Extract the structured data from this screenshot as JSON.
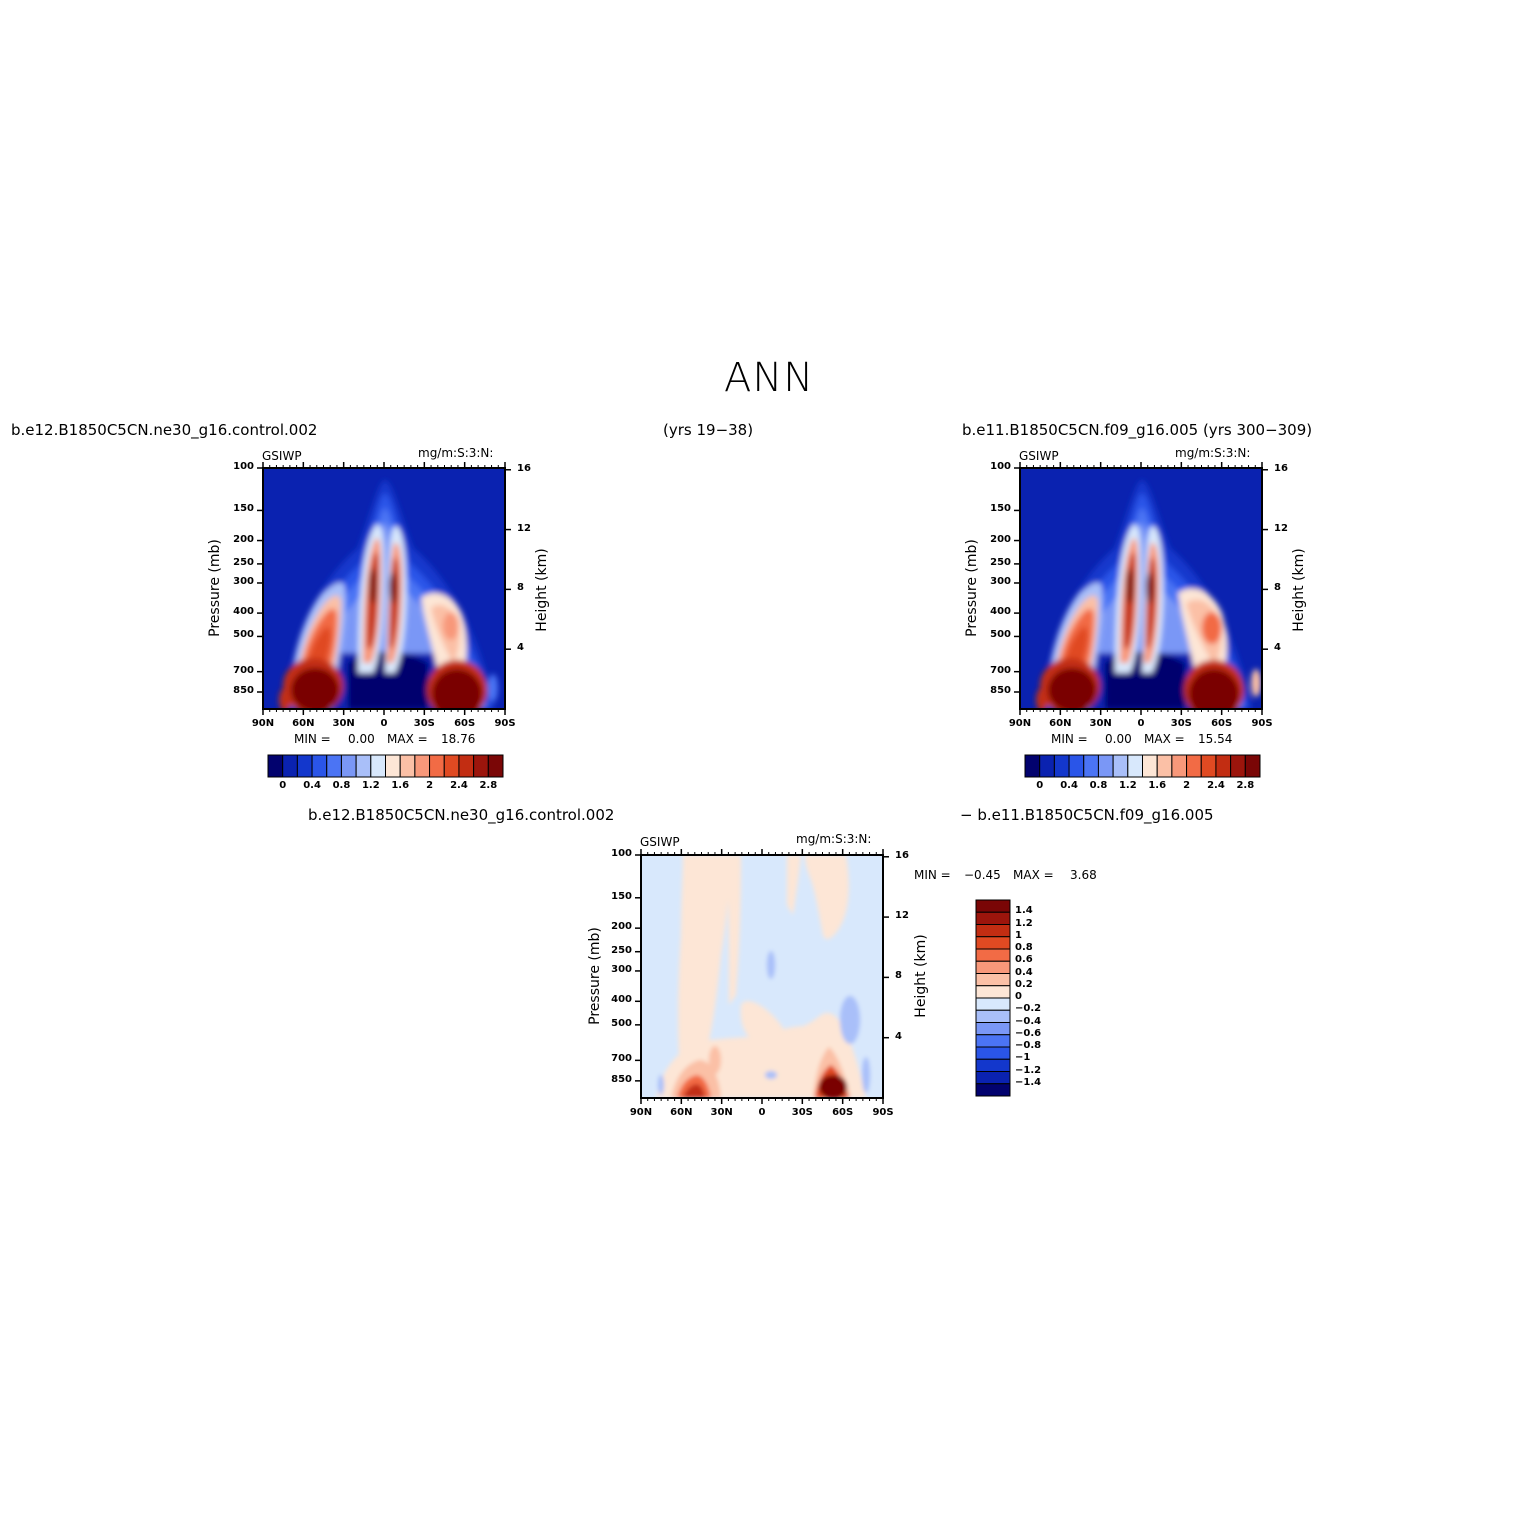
{
  "figure": {
    "title": "ANN",
    "case1_header": "b.e12.B1850C5CN.ne30_g16.control.002",
    "years_header": "(yrs 19−38)",
    "case2_header": "b.e11.B1850C5CN.f09_g16.005 (yrs 300−309)",
    "diff_header_left": "b.e12.B1850C5CN.ne30_g16.control.002",
    "diff_header_right": "− b.e11.B1850C5CN.f09_g16.005"
  },
  "chart_data": [
    {
      "type": "heatmap",
      "name": "panel-1",
      "left_string": "GSIWP",
      "right_string": "mg/m:S:3:N:",
      "ylabel": "Pressure (mb)",
      "ylabel_right": "Height (km)",
      "x_ticks": [
        "90N",
        "60N",
        "30N",
        "0",
        "30S",
        "60S",
        "90S"
      ],
      "x_values": [
        90,
        60,
        30,
        0,
        -30,
        -60,
        -90
      ],
      "y_ticks": [
        "100",
        "150",
        "200",
        "250",
        "300",
        "400",
        "500",
        "700",
        "850"
      ],
      "y_values": [
        100,
        150,
        200,
        250,
        300,
        400,
        500,
        700,
        850
      ],
      "y_right_ticks": [
        "16",
        "12",
        "8",
        "4"
      ],
      "y_right_values": [
        16,
        12,
        8,
        4
      ],
      "xlim": [
        90,
        -90
      ],
      "ylim": [
        1000,
        100
      ],
      "yscale": "log",
      "min_text": "MIN =",
      "min_value": "0.00",
      "max_text": "MAX =",
      "max_value": "18.76",
      "colorbar": {
        "orientation": "horizontal",
        "labels": [
          "0",
          "0.4",
          "0.8",
          "1.2",
          "1.6",
          "2",
          "2.4",
          "2.8"
        ],
        "levels": [
          0,
          0.2,
          0.4,
          0.6,
          0.8,
          1,
          1.2,
          1.4,
          1.6,
          1.8,
          2,
          2.2,
          2.4,
          2.6,
          2.8
        ],
        "colors": [
          "#02026e",
          "#0a22b0",
          "#1337cc",
          "#2a55e8",
          "#4b74f4",
          "#7a97f6",
          "#a9bff9",
          "#d8e8fc",
          "#fde6d6",
          "#fbc0a6",
          "#f8987a",
          "#f26b45",
          "#e04a22",
          "#c22d12",
          "#9c150c",
          "#7a0606"
        ]
      },
      "features": [
        {
          "label": "NH high-latitude maximum",
          "lat": 60,
          "pressure": 800,
          "value": 2.8
        },
        {
          "label": "SH high-latitude maximum",
          "lat": -58,
          "pressure": 800,
          "value": 2.8
        },
        {
          "label": "tropical twin columns",
          "lat": 0,
          "pressure": 300,
          "value": 2.8
        },
        {
          "label": "NH mid-level band",
          "lat": 45,
          "pressure": 400,
          "value": 2.4
        },
        {
          "label": "SH mid-level band",
          "lat": -50,
          "pressure": 420,
          "value": 2.0
        }
      ]
    },
    {
      "type": "heatmap",
      "name": "panel-2",
      "left_string": "GSIWP",
      "right_string": "mg/m:S:3:N:",
      "ylabel": "Pressure (mb)",
      "ylabel_right": "Height (km)",
      "x_ticks": [
        "90N",
        "60N",
        "30N",
        "0",
        "30S",
        "60S",
        "90S"
      ],
      "x_values": [
        90,
        60,
        30,
        0,
        -30,
        -60,
        -90
      ],
      "y_ticks": [
        "100",
        "150",
        "200",
        "250",
        "300",
        "400",
        "500",
        "700",
        "850"
      ],
      "y_values": [
        100,
        150,
        200,
        250,
        300,
        400,
        500,
        700,
        850
      ],
      "y_right_ticks": [
        "16",
        "12",
        "8",
        "4"
      ],
      "y_right_values": [
        16,
        12,
        8,
        4
      ],
      "xlim": [
        90,
        -90
      ],
      "ylim": [
        1000,
        100
      ],
      "yscale": "log",
      "min_text": "MIN =",
      "min_value": "0.00",
      "max_text": "MAX =",
      "max_value": "15.54",
      "colorbar": {
        "orientation": "horizontal",
        "labels": [
          "0",
          "0.4",
          "0.8",
          "1.2",
          "1.6",
          "2",
          "2.4",
          "2.8"
        ],
        "levels": [
          0,
          0.2,
          0.4,
          0.6,
          0.8,
          1,
          1.2,
          1.4,
          1.6,
          1.8,
          2,
          2.2,
          2.4,
          2.6,
          2.8
        ],
        "colors": [
          "#02026e",
          "#0a22b0",
          "#1337cc",
          "#2a55e8",
          "#4b74f4",
          "#7a97f6",
          "#a9bff9",
          "#d8e8fc",
          "#fde6d6",
          "#fbc0a6",
          "#f8987a",
          "#f26b45",
          "#e04a22",
          "#c22d12",
          "#9c150c",
          "#7a0606"
        ]
      },
      "features": [
        {
          "label": "NH high-latitude maximum",
          "lat": 60,
          "pressure": 800,
          "value": 2.8
        },
        {
          "label": "SH high-latitude maximum",
          "lat": -58,
          "pressure": 800,
          "value": 2.8
        },
        {
          "label": "tropical twin columns",
          "lat": 0,
          "pressure": 300,
          "value": 2.8
        },
        {
          "label": "NH mid-level band",
          "lat": 45,
          "pressure": 400,
          "value": 2.4
        },
        {
          "label": "SH mid-level band",
          "lat": -50,
          "pressure": 420,
          "value": 2.2
        }
      ]
    },
    {
      "type": "heatmap",
      "name": "difference",
      "left_string": "GSIWP",
      "right_string": "mg/m:S:3:N:",
      "ylabel": "Pressure (mb)",
      "ylabel_right": "Height (km)",
      "x_ticks": [
        "90N",
        "60N",
        "30N",
        "0",
        "30S",
        "60S",
        "90S"
      ],
      "x_values": [
        90,
        60,
        30,
        0,
        -30,
        -60,
        -90
      ],
      "y_ticks": [
        "100",
        "150",
        "200",
        "250",
        "300",
        "400",
        "500",
        "700",
        "850"
      ],
      "y_values": [
        100,
        150,
        200,
        250,
        300,
        400,
        500,
        700,
        850
      ],
      "y_right_ticks": [
        "16",
        "12",
        "8",
        "4"
      ],
      "y_right_values": [
        16,
        12,
        8,
        4
      ],
      "xlim": [
        90,
        -90
      ],
      "ylim": [
        1000,
        100
      ],
      "yscale": "log",
      "min_text": "MIN =",
      "min_value": "−0.45",
      "max_text": "MAX =",
      "max_value": "3.68",
      "colorbar": {
        "orientation": "vertical",
        "labels": [
          "1.4",
          "1.2",
          "1",
          "0.8",
          "0.6",
          "0.4",
          "0.2",
          "0",
          "−0.2",
          "−0.4",
          "−0.6",
          "−0.8",
          "−1",
          "−1.2",
          "−1.4"
        ],
        "levels": [
          1.4,
          1.2,
          1,
          0.8,
          0.6,
          0.4,
          0.2,
          0,
          -0.2,
          -0.4,
          -0.6,
          -0.8,
          -1,
          -1.2,
          -1.4
        ],
        "colors": [
          "#7a0606",
          "#9c150c",
          "#c22d12",
          "#e04a22",
          "#f26b45",
          "#f8987a",
          "#fbc0a6",
          "#fde6d6",
          "#d8e8fc",
          "#a9bff9",
          "#7a97f6",
          "#4b74f4",
          "#2a55e8",
          "#1337cc",
          "#0a22b0",
          "#02026e"
        ]
      },
      "features": [
        {
          "label": "NH low-level positive",
          "lat": 60,
          "pressure": 850,
          "value": 1.4
        },
        {
          "label": "SH low-level positive maximum",
          "lat": -55,
          "pressure": 830,
          "value": 1.4
        },
        {
          "label": "weak negative SH mid-levels",
          "lat": -65,
          "pressure": 420,
          "value": -0.2
        }
      ]
    }
  ]
}
